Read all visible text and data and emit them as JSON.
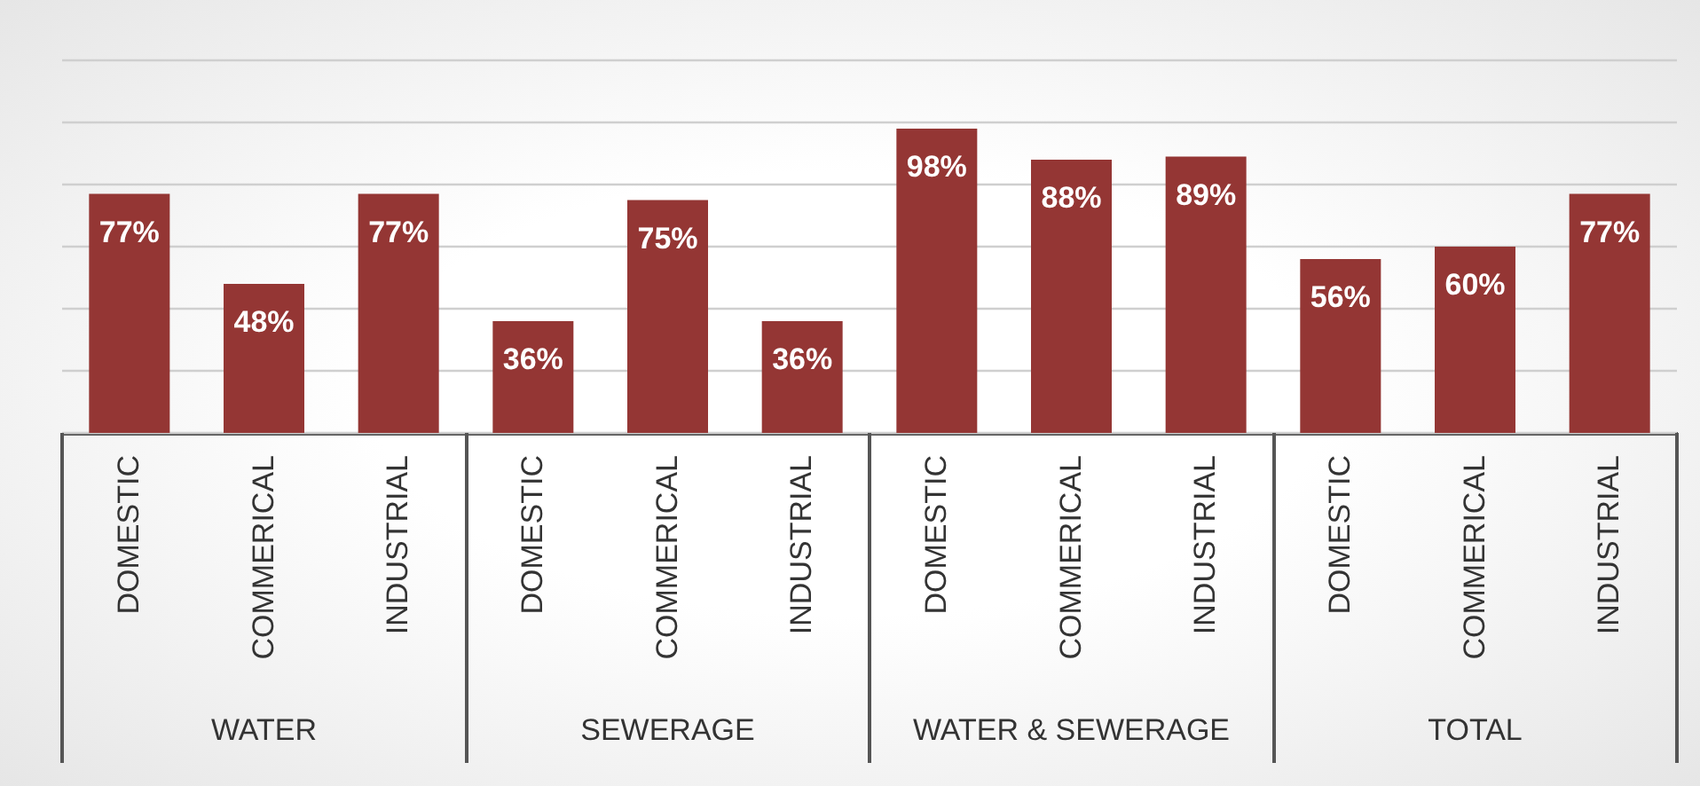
{
  "chart_data": {
    "type": "bar",
    "categories": [
      "DOMESTIC",
      "COMMERICAL",
      "INDUSTRIAL",
      "DOMESTIC",
      "COMMERICAL",
      "INDUSTRIAL",
      "DOMESTIC",
      "COMMERICAL",
      "INDUSTRIAL",
      "DOMESTIC",
      "COMMERICAL",
      "INDUSTRIAL"
    ],
    "values": [
      77,
      48,
      77,
      36,
      75,
      36,
      98,
      88,
      89,
      56,
      60,
      77
    ],
    "value_labels": [
      "77%",
      "48%",
      "77%",
      "36%",
      "75%",
      "36%",
      "98%",
      "88%",
      "89%",
      "56%",
      "60%",
      "77%"
    ],
    "color": "#943634",
    "ylim": [
      0,
      120
    ],
    "yticks": [
      {
        "value": 0,
        "label": null
      },
      {
        "value": 20,
        "label": null
      },
      {
        "value": 40,
        "label": null
      },
      {
        "value": 60,
        "label": null
      },
      {
        "value": 80,
        "label": null
      },
      {
        "value": 100,
        "label": null
      },
      {
        "value": 120,
        "label": null
      }
    ],
    "grid": "y",
    "tick_labels": "x",
    "annotations": [
      "WATER",
      "SEWERAGE",
      "WATER & SEWERAGE",
      "TOTAL"
    ]
  }
}
